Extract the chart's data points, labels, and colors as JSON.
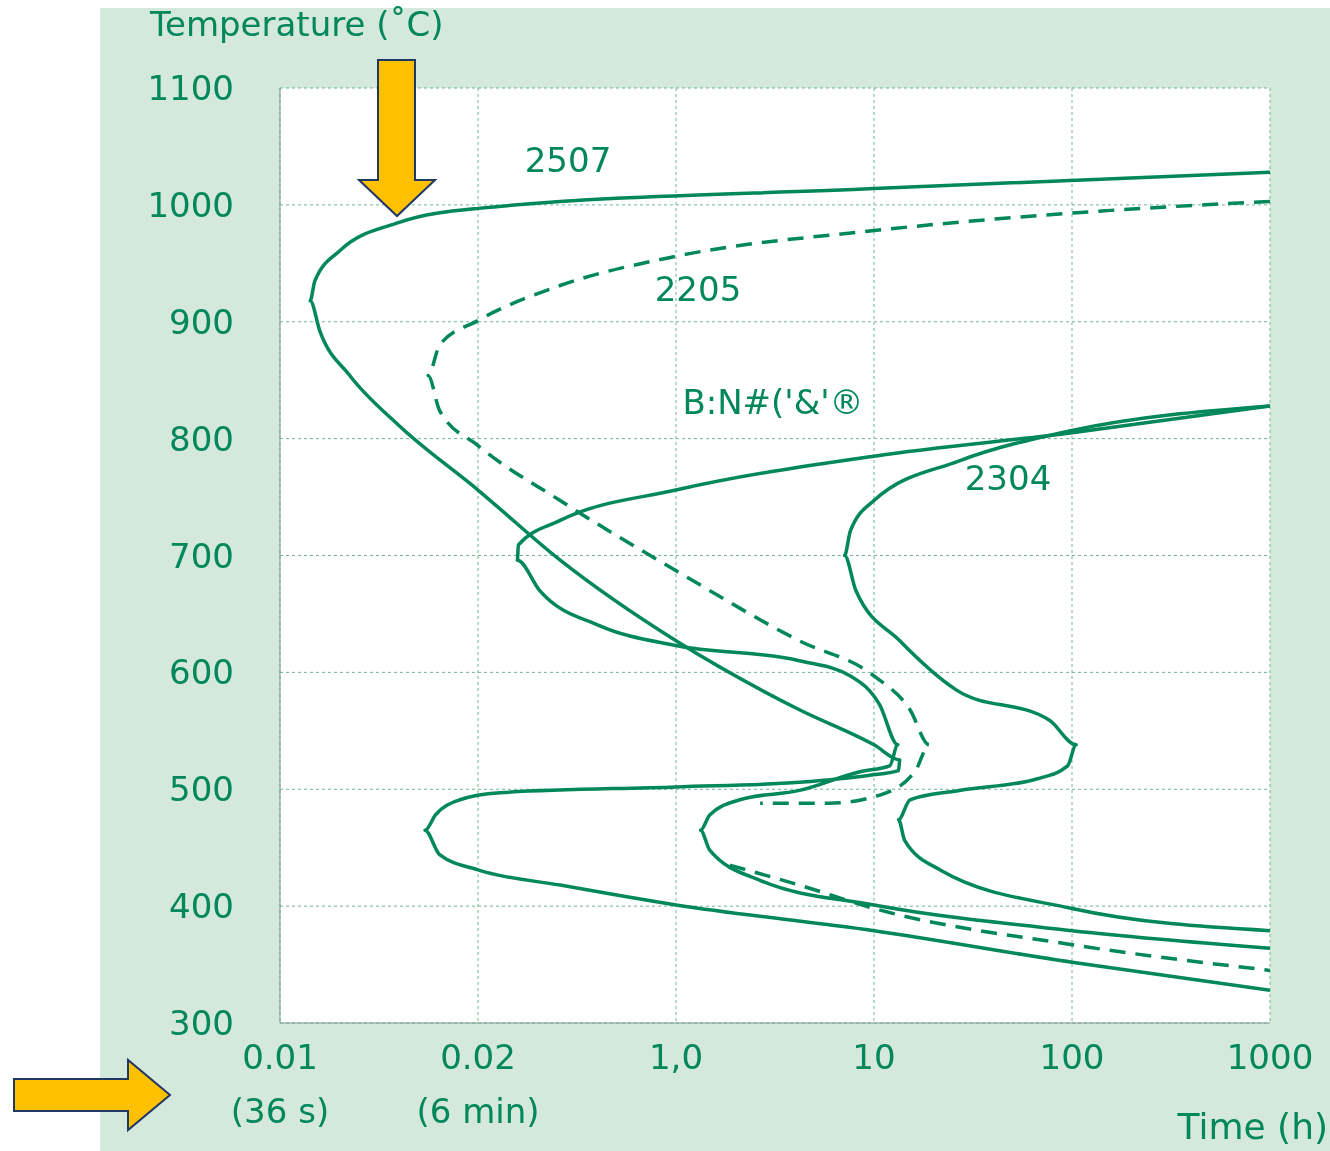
{
  "chart_data": {
    "type": "line",
    "ylabel": "Temperature (˚C)",
    "xlabel": "Time (h)",
    "log": "x",
    "xlim": [
      0.01,
      1000
    ],
    "xticks": [
      {
        "value": 0.01,
        "label": "0.01\n(36 s)"
      },
      {
        "value": 0.1,
        "label": "0.02\n(6 min)"
      },
      {
        "value": 1,
        "label": "1,0"
      },
      10,
      100,
      1000
    ],
    "ylim": [
      300,
      1100
    ],
    "yticks": [
      300,
      400,
      500,
      600,
      700,
      800,
      900,
      1000,
      1100
    ],
    "grid": true,
    "marker": "none",
    "series": [
      {
        "name": "2507",
        "color": "#00875a",
        "line_style": "solid",
        "x": [
          1000,
          10,
          0.1,
          0.04,
          0.0201,
          0.015,
          0.0142,
          0.0159,
          0.0225,
          0.04,
          0.1,
          0.26,
          1,
          4.2,
          10,
          13.5,
          13.3,
          9.5,
          4.2,
          1,
          0.129,
          0.081,
          0.061,
          0.054,
          0.064,
          0.1,
          0.26,
          1,
          10,
          100,
          1000
        ],
        "values": [
          1028,
          1014,
          997,
          985,
          961,
          935,
          918,
          892,
          854,
          811,
          756,
          696,
          627,
          568,
          538,
          525,
          516,
          512,
          506,
          502,
          497,
          491,
          478,
          465,
          444,
          431,
          418,
          401,
          379,
          352,
          328
        ]
      },
      {
        "name": "2205",
        "color": "#00875a",
        "line_style": "dashed",
        "x": [
          1000,
          100,
          10,
          1,
          0.26,
          0.1,
          0.064,
          0.056,
          0.064,
          0.1,
          0.26,
          1,
          4.2,
          10,
          15.2,
          19,
          16.2,
          10.7,
          5.9,
          2.66,
          2.2,
          1.87,
          4.2,
          10,
          100,
          1000
        ],
        "values": [
          1003,
          993,
          978,
          956,
          931,
          901,
          880,
          854,
          824,
          794,
          747,
          687,
          627,
          597,
          568,
          538,
          516,
          495,
          488,
          488,
          null,
          435,
          418,
          398,
          367,
          345
        ]
      },
      {
        "name": "2304",
        "color": "#00875a",
        "line_style": "solid",
        "x": [
          1000,
          100,
          27,
          10,
          7.6,
          7.1,
          8.1,
          13.5,
          26,
          77,
          105,
          95,
          67,
          27,
          15.2,
          13.3,
          14.3,
          21.6,
          100,
          1000
        ],
        "values": [
          828,
          807,
          781,
          747,
          721,
          700,
          670,
          627,
          585,
          559,
          538,
          520,
          509,
          499,
          491,
          474,
          456,
          431,
          398,
          379
        ]
      },
      {
        "name": "B:N#('&'®",
        "color": "#00875a",
        "line_style": "solid",
        "x": [
          1000,
          100,
          10,
          1,
          0.26,
          0.16,
          0.158,
          0.205,
          0.41,
          1,
          4.2,
          7.6,
          10.7,
          13.2,
          12,
          8.5,
          4.2,
          2.1,
          1.48,
          1.33,
          1.48,
          2.66,
          10,
          100,
          1000
        ],
        "values": [
          828,
          805,
          785,
          756,
          730,
          709,
          696,
          670,
          640,
          623,
          610,
          597,
          572,
          538,
          520,
          515,
          499,
          491,
          478,
          465,
          448,
          422,
          401,
          379,
          364
        ]
      }
    ]
  }
}
